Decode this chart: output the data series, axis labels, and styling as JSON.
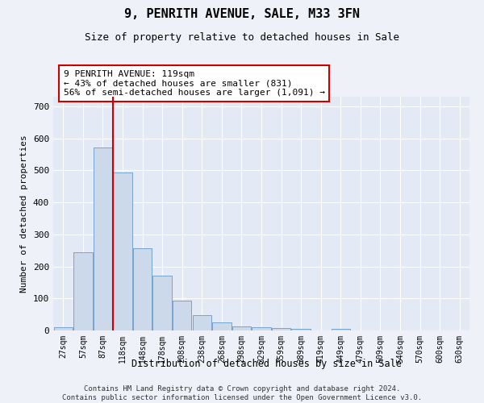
{
  "title": "9, PENRITH AVENUE, SALE, M33 3FN",
  "subtitle": "Size of property relative to detached houses in Sale",
  "xlabel": "Distribution of detached houses by size in Sale",
  "ylabel": "Number of detached properties",
  "footnote": "Contains HM Land Registry data © Crown copyright and database right 2024.\nContains public sector information licensed under the Open Government Licence v3.0.",
  "bar_labels": [
    "27sqm",
    "57sqm",
    "87sqm",
    "118sqm",
    "148sqm",
    "178sqm",
    "208sqm",
    "238sqm",
    "268sqm",
    "298sqm",
    "329sqm",
    "359sqm",
    "389sqm",
    "419sqm",
    "449sqm",
    "479sqm",
    "509sqm",
    "540sqm",
    "570sqm",
    "600sqm",
    "630sqm"
  ],
  "bar_values": [
    10,
    244,
    572,
    493,
    256,
    170,
    92,
    47,
    25,
    13,
    10,
    8,
    5,
    1,
    5,
    0,
    0,
    0,
    0,
    0,
    0
  ],
  "bar_color": "#ccd9eb",
  "bar_edge_color": "#6699cc",
  "property_line_x": 2.5,
  "annotation_text": "9 PENRITH AVENUE: 119sqm\n← 43% of detached houses are smaller (831)\n56% of semi-detached houses are larger (1,091) →",
  "annotation_box_color": "#ffffff",
  "annotation_box_edge": "#cc0000",
  "annotation_line_color": "#cc0000",
  "ylim": [
    0,
    730
  ],
  "yticks": [
    0,
    100,
    200,
    300,
    400,
    500,
    600,
    700
  ],
  "background_color": "#eef2f8",
  "plot_background": "#e4eaf5"
}
